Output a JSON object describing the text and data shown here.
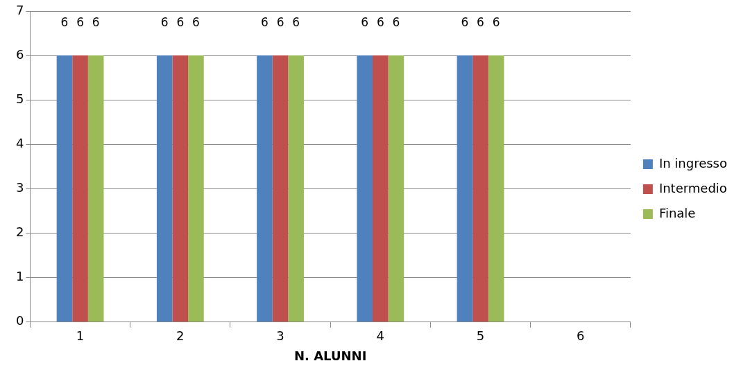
{
  "chart_data": {
    "type": "bar",
    "xlabel": "N. ALUNNI",
    "categories": [
      "1",
      "2",
      "3",
      "4",
      "5",
      "6"
    ],
    "series": [
      {
        "name": "In ingresso",
        "color": "#4f81bd",
        "values": [
          6,
          6,
          6,
          6,
          6,
          null
        ]
      },
      {
        "name": "Intermedio",
        "color": "#c0504d",
        "values": [
          6,
          6,
          6,
          6,
          6,
          null
        ]
      },
      {
        "name": "Finale",
        "color": "#9bbb59",
        "values": [
          6,
          6,
          6,
          6,
          6,
          null
        ]
      }
    ],
    "ylim": [
      0,
      7
    ],
    "yticks": [
      0,
      1,
      2,
      3,
      4,
      5,
      6,
      7
    ],
    "grid": "y",
    "legend": "right",
    "data_labels": true
  }
}
